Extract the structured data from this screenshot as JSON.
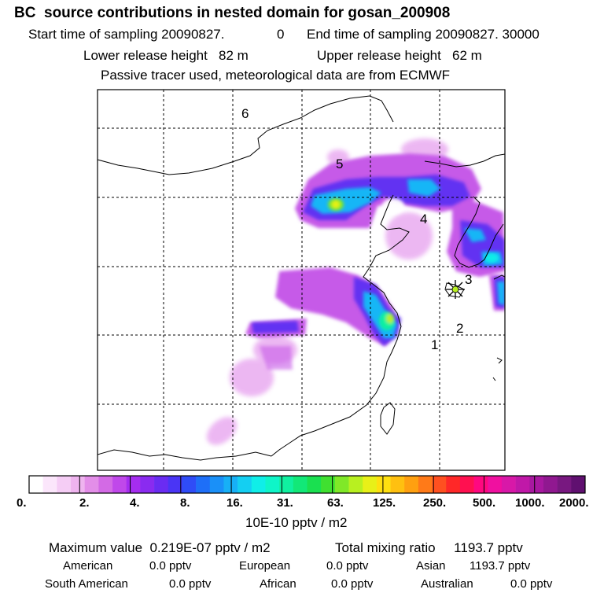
{
  "header": {
    "title": "BC  source contributions in nested domain for gosan_200908",
    "sampling_start_label": "Start time of sampling 20090827.",
    "sampling_start_hour": "0",
    "sampling_end_label": "End time of sampling 20090827. 30000",
    "lower_release": "Lower release height   82 m",
    "upper_release": "Upper release height   62 m",
    "note": "Passive tracer used, meteorological data are from ECMWF"
  },
  "map": {
    "region_labels": [
      "1",
      "2",
      "3",
      "4",
      "5",
      "6"
    ],
    "receptor_marker": "star-icon"
  },
  "colorbar": {
    "tick_labels": [
      "0.",
      "2.",
      "4.",
      "8.",
      "16.",
      "31.",
      "63.",
      "125.",
      "250.",
      "500.",
      "1000.",
      "2000."
    ],
    "unit_label": "10E-10 pptv / m2",
    "colors": [
      "#ffffff",
      "#fbe6fb",
      "#f5cdf5",
      "#efb4ef",
      "#e38ee8",
      "#d36ae5",
      "#c048ea",
      "#a52df0",
      "#8a2bf0",
      "#6a2cf2",
      "#4a35f5",
      "#2f4cf7",
      "#1e6ff8",
      "#1a90f8",
      "#17b0f6",
      "#14cff2",
      "#10eee8",
      "#0ff5c8",
      "#10f0a0",
      "#12e878",
      "#1ae050",
      "#40e030",
      "#80e828",
      "#b8f020",
      "#e8f018",
      "#ffe010",
      "#ffc010",
      "#ffa010",
      "#ff7a18",
      "#ff5020",
      "#ff2828",
      "#ff1050",
      "#ff0880",
      "#f010a0",
      "#d818a8",
      "#c018a8",
      "#a818a0",
      "#901890",
      "#781880",
      "#601070"
    ]
  },
  "summary": {
    "max_value": "Maximum value  0.219E-07 pptv / m2",
    "total_mixing": "Total mixing ratio     1193.7 pptv",
    "american_label": "American",
    "american_value": "0.0 pptv",
    "european_label": "European",
    "european_value": "0.0 pptv",
    "asian_label": "Asian",
    "asian_value": "1193.7 pptv",
    "south_american_label": "South American",
    "south_american_value": "0.0 pptv",
    "african_label": "African",
    "african_value": "0.0 pptv",
    "australian_label": "Australian",
    "australian_value": "0.0 pptv"
  }
}
